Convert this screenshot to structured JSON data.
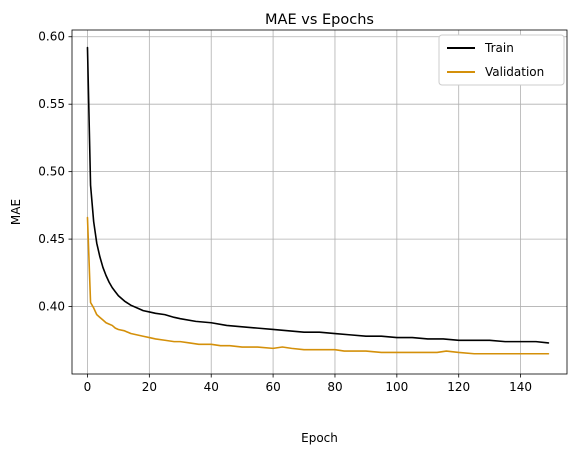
{
  "chart_data": {
    "type": "line",
    "title": "MAE vs Epochs",
    "xlabel": "Epoch",
    "ylabel": "MAE",
    "xlim": [
      -5,
      155
    ],
    "ylim": [
      0.35,
      0.605
    ],
    "xticks": [
      0,
      20,
      40,
      60,
      80,
      100,
      120,
      140
    ],
    "yticks": [
      0.4,
      0.45,
      0.5,
      0.55,
      0.6
    ],
    "ytick_labels": [
      "0.40",
      "0.45",
      "0.50",
      "0.55",
      "0.60"
    ],
    "grid": true,
    "legend_position": "top-right",
    "series": [
      {
        "name": "Train",
        "color": "#000000",
        "points": [
          [
            0,
            0.592
          ],
          [
            1,
            0.49
          ],
          [
            2,
            0.463
          ],
          [
            3,
            0.447
          ],
          [
            4,
            0.437
          ],
          [
            5,
            0.429
          ],
          [
            6,
            0.423
          ],
          [
            7,
            0.418
          ],
          [
            8,
            0.414
          ],
          [
            9,
            0.411
          ],
          [
            10,
            0.408
          ],
          [
            12,
            0.404
          ],
          [
            14,
            0.401
          ],
          [
            16,
            0.399
          ],
          [
            18,
            0.397
          ],
          [
            20,
            0.396
          ],
          [
            22,
            0.395
          ],
          [
            25,
            0.394
          ],
          [
            28,
            0.392
          ],
          [
            30,
            0.391
          ],
          [
            35,
            0.389
          ],
          [
            40,
            0.388
          ],
          [
            45,
            0.386
          ],
          [
            50,
            0.385
          ],
          [
            55,
            0.384
          ],
          [
            60,
            0.383
          ],
          [
            65,
            0.382
          ],
          [
            70,
            0.381
          ],
          [
            75,
            0.381
          ],
          [
            80,
            0.38
          ],
          [
            85,
            0.379
          ],
          [
            90,
            0.378
          ],
          [
            95,
            0.378
          ],
          [
            100,
            0.377
          ],
          [
            105,
            0.377
          ],
          [
            110,
            0.376
          ],
          [
            115,
            0.376
          ],
          [
            120,
            0.375
          ],
          [
            125,
            0.375
          ],
          [
            130,
            0.375
          ],
          [
            135,
            0.374
          ],
          [
            140,
            0.374
          ],
          [
            145,
            0.374
          ],
          [
            149,
            0.373
          ]
        ]
      },
      {
        "name": "Validation",
        "color": "#d4900a",
        "points": [
          [
            0,
            0.466
          ],
          [
            1,
            0.403
          ],
          [
            2,
            0.399
          ],
          [
            3,
            0.394
          ],
          [
            4,
            0.392
          ],
          [
            5,
            0.39
          ],
          [
            6,
            0.388
          ],
          [
            7,
            0.387
          ],
          [
            8,
            0.386
          ],
          [
            9,
            0.384
          ],
          [
            10,
            0.383
          ],
          [
            12,
            0.382
          ],
          [
            14,
            0.38
          ],
          [
            16,
            0.379
          ],
          [
            18,
            0.378
          ],
          [
            20,
            0.377
          ],
          [
            22,
            0.376
          ],
          [
            25,
            0.375
          ],
          [
            28,
            0.374
          ],
          [
            30,
            0.374
          ],
          [
            33,
            0.373
          ],
          [
            36,
            0.372
          ],
          [
            40,
            0.372
          ],
          [
            43,
            0.371
          ],
          [
            46,
            0.371
          ],
          [
            50,
            0.37
          ],
          [
            55,
            0.37
          ],
          [
            60,
            0.369
          ],
          [
            63,
            0.37
          ],
          [
            66,
            0.369
          ],
          [
            70,
            0.368
          ],
          [
            75,
            0.368
          ],
          [
            80,
            0.368
          ],
          [
            83,
            0.367
          ],
          [
            86,
            0.367
          ],
          [
            90,
            0.367
          ],
          [
            95,
            0.366
          ],
          [
            100,
            0.366
          ],
          [
            105,
            0.366
          ],
          [
            110,
            0.366
          ],
          [
            113,
            0.366
          ],
          [
            116,
            0.367
          ],
          [
            120,
            0.366
          ],
          [
            125,
            0.365
          ],
          [
            130,
            0.365
          ],
          [
            135,
            0.365
          ],
          [
            140,
            0.365
          ],
          [
            145,
            0.365
          ],
          [
            149,
            0.365
          ]
        ]
      }
    ]
  }
}
